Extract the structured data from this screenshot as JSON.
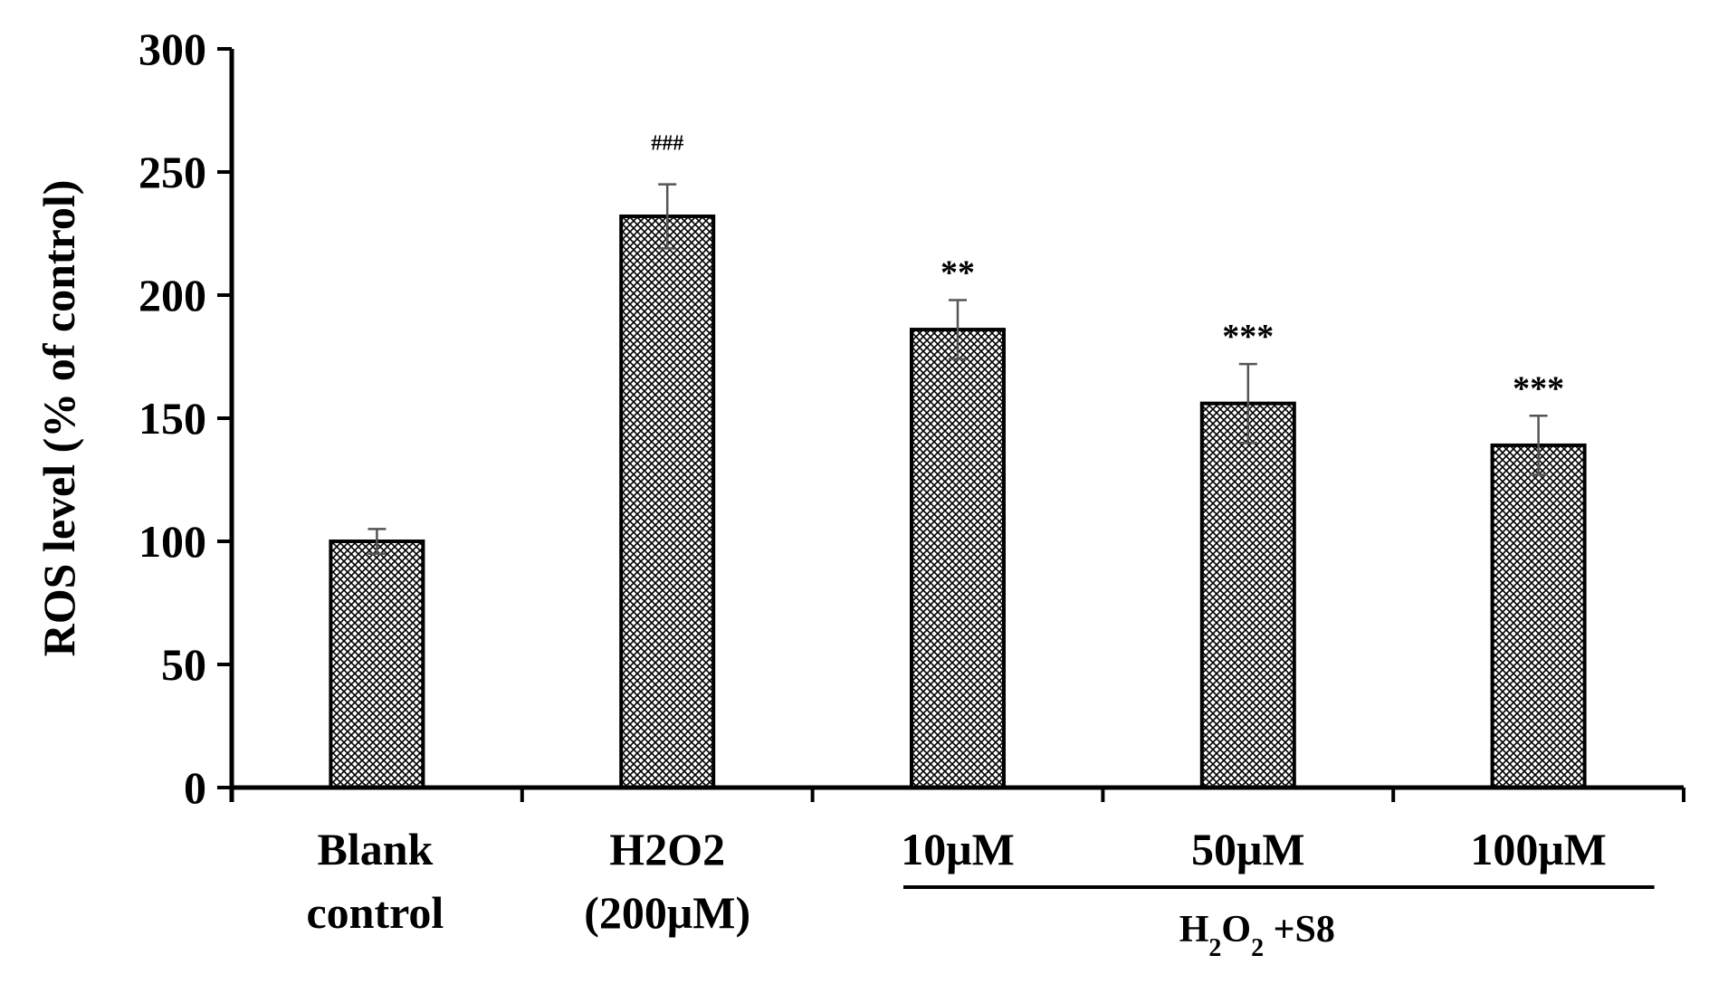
{
  "chart_data": {
    "type": "bar",
    "title": "",
    "xlabel": "",
    "ylabel": "ROS level (% of control)",
    "ylim": [
      0,
      300
    ],
    "yticks": [
      0,
      50,
      100,
      150,
      200,
      250,
      300
    ],
    "grid": false,
    "categories": [
      {
        "line1": "Blank",
        "line2": "control"
      },
      {
        "line1": "H2O2",
        "line2": "(200μM)"
      },
      {
        "line1": "10μM",
        "line2": ""
      },
      {
        "line1": "50μM",
        "line2": ""
      },
      {
        "line1": "100μM",
        "line2": ""
      }
    ],
    "values": [
      100,
      232,
      186,
      156,
      139
    ],
    "errors": [
      5,
      13,
      12,
      16,
      12
    ],
    "significance": [
      "",
      "###",
      "**",
      "***",
      "***"
    ],
    "group_annotation": {
      "label_base": "H",
      "label_sub1": "2",
      "label_mid": "O",
      "label_sub2": "2",
      "label_tail": " +S8",
      "spans_categories": [
        2,
        4
      ]
    },
    "colors": {
      "bar_fill_fg": "#000000",
      "bar_fill_bg": "#ffffff",
      "axis": "#000000",
      "error_bar": "#555555"
    }
  }
}
